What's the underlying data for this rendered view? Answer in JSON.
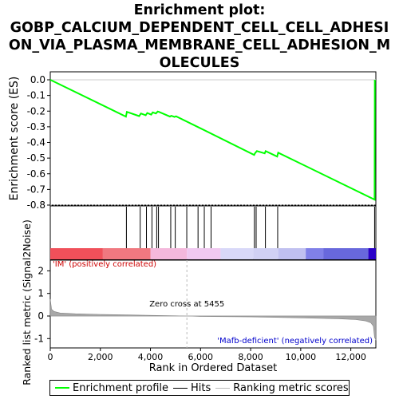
{
  "title_lines": [
    "Enrichment plot:",
    "GOBP_CALCIUM_DEPENDENT_CELL_CELL_ADHESI",
    "ON_VIA_PLASMA_MEMBRANE_CELL_ADHESION_M",
    "OLECULES"
  ],
  "colors": {
    "es_line": "#00ff00",
    "hits": "#000000",
    "metric": "#808080",
    "pos_label": "#cc0000",
    "neg_label": "#0000cc"
  },
  "chart_data": {
    "type": "line",
    "es_panel": {
      "ylabel": "Enrichment score (ES)",
      "ylim": [
        -0.8,
        0.0
      ],
      "yticks": [
        "0.0",
        "-0.1",
        "-0.2",
        "-0.3",
        "-0.4",
        "-0.5",
        "-0.6",
        "-0.7",
        "-0.8"
      ],
      "series": [
        {
          "name": "Enrichment profile",
          "x": [
            0,
            3020,
            3060,
            3550,
            3620,
            3810,
            3870,
            4030,
            4090,
            4220,
            4290,
            4340,
            4780,
            4830,
            4960,
            5020,
            6000,
            8140,
            8180,
            8250,
            8560,
            8600,
            9060,
            9100,
            12950,
            12960
          ],
          "y": [
            0.0,
            -0.235,
            -0.205,
            -0.232,
            -0.215,
            -0.226,
            -0.212,
            -0.222,
            -0.208,
            -0.215,
            -0.203,
            -0.205,
            -0.235,
            -0.23,
            -0.237,
            -0.233,
            -0.31,
            -0.48,
            -0.468,
            -0.455,
            -0.47,
            -0.455,
            -0.49,
            -0.465,
            -0.765,
            0.0
          ]
        }
      ],
      "zero_line": 0.0
    },
    "hits": {
      "name": "Hits",
      "x": [
        3040,
        3590,
        3840,
        4060,
        4250,
        4320,
        4810,
        4990,
        5450,
        5900,
        6150,
        6420,
        8150,
        8220,
        8590,
        9080,
        12950
      ]
    },
    "rank_bar": {
      "segments": [
        {
          "from": 0,
          "to": 2100,
          "color": "#f0505a"
        },
        {
          "from": 2100,
          "to": 4000,
          "color": "#f07880"
        },
        {
          "from": 4000,
          "to": 5455,
          "color": "#f4b8dc"
        },
        {
          "from": 5455,
          "to": 6800,
          "color": "#f0c8f0"
        },
        {
          "from": 6800,
          "to": 8100,
          "color": "#d8d8f8"
        },
        {
          "from": 8100,
          "to": 9100,
          "color": "#d0d0f4"
        },
        {
          "from": 9100,
          "to": 10200,
          "color": "#c0c0f0"
        },
        {
          "from": 10200,
          "to": 10900,
          "color": "#8080e8"
        },
        {
          "from": 10900,
          "to": 12700,
          "color": "#6868dc"
        },
        {
          "from": 12700,
          "to": 13000,
          "color": "#2a00c8"
        }
      ]
    },
    "metric_panel": {
      "ylabel": "Ranked list metric (Signal2Noise)",
      "ylim": [
        -1.2,
        2.4
      ],
      "yticks": [
        "2",
        "1",
        "0",
        "-1"
      ],
      "series": [
        {
          "name": "Ranking metric scores",
          "x": [
            0,
            50,
            150,
            400,
            1000,
            2000,
            3000,
            4000,
            5000,
            5455,
            6000,
            8000,
            10000,
            11500,
            12200,
            12600,
            12800,
            12900,
            12950,
            13000
          ],
          "y": [
            0.75,
            0.3,
            0.2,
            0.13,
            0.1,
            0.07,
            0.05,
            0.03,
            0.01,
            0.0,
            -0.02,
            -0.04,
            -0.08,
            -0.12,
            -0.16,
            -0.22,
            -0.3,
            -0.45,
            -0.95,
            -1.05
          ]
        }
      ],
      "zero_cross_text": "Zero cross at 5455",
      "zero_cross_x": 5455,
      "pos_label": "'IM' (positively correlated)",
      "neg_label": "'Mafb-deficient' (negatively correlated)"
    },
    "x_axis": {
      "label": "Rank in Ordered Dataset",
      "xlim": [
        0,
        13000
      ],
      "ticks": [
        0,
        2000,
        4000,
        6000,
        8000,
        10000,
        12000
      ],
      "tick_labels": [
        "0",
        "2,000",
        "4,000",
        "6,000",
        "8,000",
        "10,000",
        "12,000"
      ]
    },
    "legend": [
      {
        "label": "Enrichment profile",
        "kind": "es"
      },
      {
        "label": "Hits",
        "kind": "hits"
      },
      {
        "label": "Ranking metric scores",
        "kind": "metric"
      }
    ]
  }
}
